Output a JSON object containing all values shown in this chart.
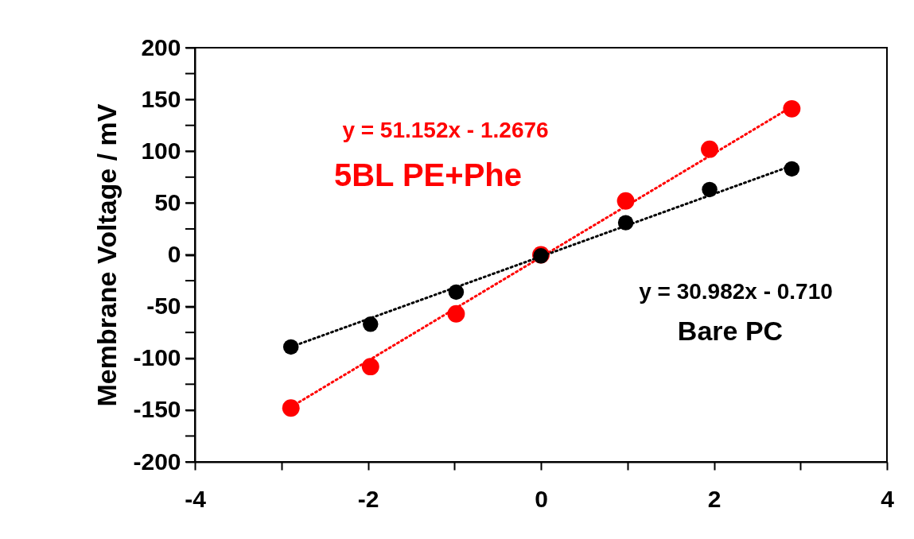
{
  "chart_data": {
    "type": "scatter",
    "ylabel": "Membrane Voltage / mV",
    "xlim": [
      -4,
      4
    ],
    "ylim": [
      -200,
      200
    ],
    "xticks": [
      -4,
      {
        "value": -3,
        "label": null
      },
      -2,
      {
        "value": -1,
        "label": null
      },
      0,
      {
        "value": 1,
        "label": null
      },
      2,
      {
        "value": 3,
        "label": null
      },
      4
    ],
    "yticks": [
      -200,
      {
        "value": -175,
        "label": null
      },
      -150,
      {
        "value": -125,
        "label": null
      },
      -100,
      {
        "value": -75,
        "label": null
      },
      -50,
      {
        "value": -25,
        "label": null
      },
      0,
      {
        "value": 25,
        "label": null
      },
      50,
      {
        "value": 75,
        "label": null
      },
      100,
      {
        "value": 125,
        "label": null
      },
      150,
      {
        "value": 175,
        "label": null
      },
      200
    ],
    "grid": false,
    "marker": "circle",
    "annotations": [
      "Bare PC",
      "y = 51.152x - 1.2676"
    ],
    "series": [
      {
        "name": "5BL PE+Phe",
        "color": "#ff0000",
        "x": [
          -2.89,
          -1.97,
          -0.98,
          0,
          0.98,
          1.95,
          2.9
        ],
        "values": [
          -148,
          -108,
          -57,
          0,
          52,
          102,
          141
        ]
      },
      {
        "type": "line",
        "line_style": "dotted",
        "marker": "none",
        "color": "#ff0000",
        "x": [
          -2.89,
          2.9
        ],
        "values": [
          -147,
          143
        ]
      },
      {
        "color": "#000000",
        "x": [
          -2.89,
          -1.97,
          -0.98,
          0,
          0.98,
          1.95,
          2.9
        ],
        "values": [
          -89,
          -67,
          -36,
          -1,
          31,
          63,
          83
        ]
      },
      {
        "name": "y = 30.982x - 0.710",
        "type": "line",
        "line_style": "dotted",
        "marker": "none",
        "color": "#000000",
        "x": [
          -2.89,
          2.9
        ],
        "values": [
          -89,
          86
        ]
      }
    ]
  }
}
